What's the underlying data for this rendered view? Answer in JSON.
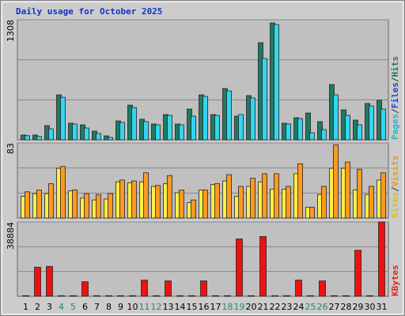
{
  "chart_data": [
    {
      "type": "bar",
      "title": "Daily usage for October 2025",
      "ylim": [
        0,
        1308
      ],
      "yticks": [
        1308
      ],
      "legend": [
        {
          "text": "Pages",
          "color": "#22b8c8"
        },
        {
          "text": "/",
          "color": "#333333"
        },
        {
          "text": "Files",
          "color": "#2244cc"
        },
        {
          "text": "/",
          "color": "#333333"
        },
        {
          "text": "Hits",
          "color": "#227766"
        }
      ],
      "series": [
        {
          "color": "#1f7a62",
          "values": [
            52,
            52,
            155,
            490,
            181,
            163,
            95,
            43,
            206,
            378,
            224,
            172,
            275,
            172,
            335,
            490,
            275,
            559,
            258,
            482,
            1058,
            1273,
            181,
            241,
            292,
            198,
            602,
            327,
            215,
            396,
            430
          ]
        },
        {
          "color": "#33d6f2",
          "values": [
            45,
            37,
            120,
            464,
            172,
            129,
            69,
            26,
            189,
            352,
            198,
            163,
            267,
            163,
            258,
            473,
            267,
            533,
            275,
            456,
            886,
            1256,
            172,
            232,
            77,
            112,
            490,
            267,
            163,
            370,
            335
          ]
        }
      ]
    },
    {
      "type": "bar",
      "ylim": [
        0,
        83
      ],
      "yticks": [
        83
      ],
      "legend": [
        {
          "text": "Sites",
          "color": "#e8b800"
        },
        {
          "text": "/",
          "color": "#333333"
        },
        {
          "text": "Visits",
          "color": "#e8a000"
        }
      ],
      "series": [
        {
          "color": "#ffee44",
          "values": [
            24,
            27,
            27,
            55,
            30,
            22,
            20,
            21,
            40,
            39,
            40,
            35,
            38,
            28,
            17,
            31,
            37,
            41,
            24,
            35,
            40,
            32,
            32,
            49,
            12,
            26,
            55,
            55,
            31,
            26,
            42
          ]
        },
        {
          "color": "#ff9922",
          "values": [
            29,
            31,
            38,
            57,
            31,
            27,
            26,
            27,
            42,
            41,
            50,
            36,
            47,
            31,
            20,
            31,
            38,
            48,
            35,
            44,
            49,
            49,
            35,
            60,
            12,
            35,
            81,
            62,
            54,
            35,
            50
          ]
        }
      ]
    },
    {
      "type": "bar",
      "ylim": [
        0,
        38884
      ],
      "yticks": [
        38884
      ],
      "legend": [
        {
          "text": "KBytes",
          "color": "#dd2222"
        }
      ],
      "categories": [
        "1",
        "2",
        "3",
        "4",
        "5",
        "6",
        "7",
        "8",
        "9",
        "10",
        "11",
        "12",
        "13",
        "14",
        "15",
        "16",
        "17",
        "18",
        "19",
        "20",
        "21",
        "22",
        "23",
        "24",
        "25",
        "26",
        "27",
        "28",
        "29",
        "30",
        "31"
      ],
      "highlight_categories": [
        "4",
        "5",
        "11",
        "12",
        "18",
        "19",
        "25",
        "26"
      ],
      "highlight_color": "#2a8a5a",
      "series": [
        {
          "color": "#ee1111",
          "values": [
            300,
            15220,
            15640,
            300,
            300,
            7610,
            300,
            300,
            300,
            300,
            8450,
            300,
            8030,
            300,
            300,
            8030,
            300,
            300,
            30010,
            300,
            31280,
            300,
            300,
            8450,
            300,
            8030,
            300,
            300,
            24090,
            300,
            38884
          ]
        }
      ]
    }
  ]
}
